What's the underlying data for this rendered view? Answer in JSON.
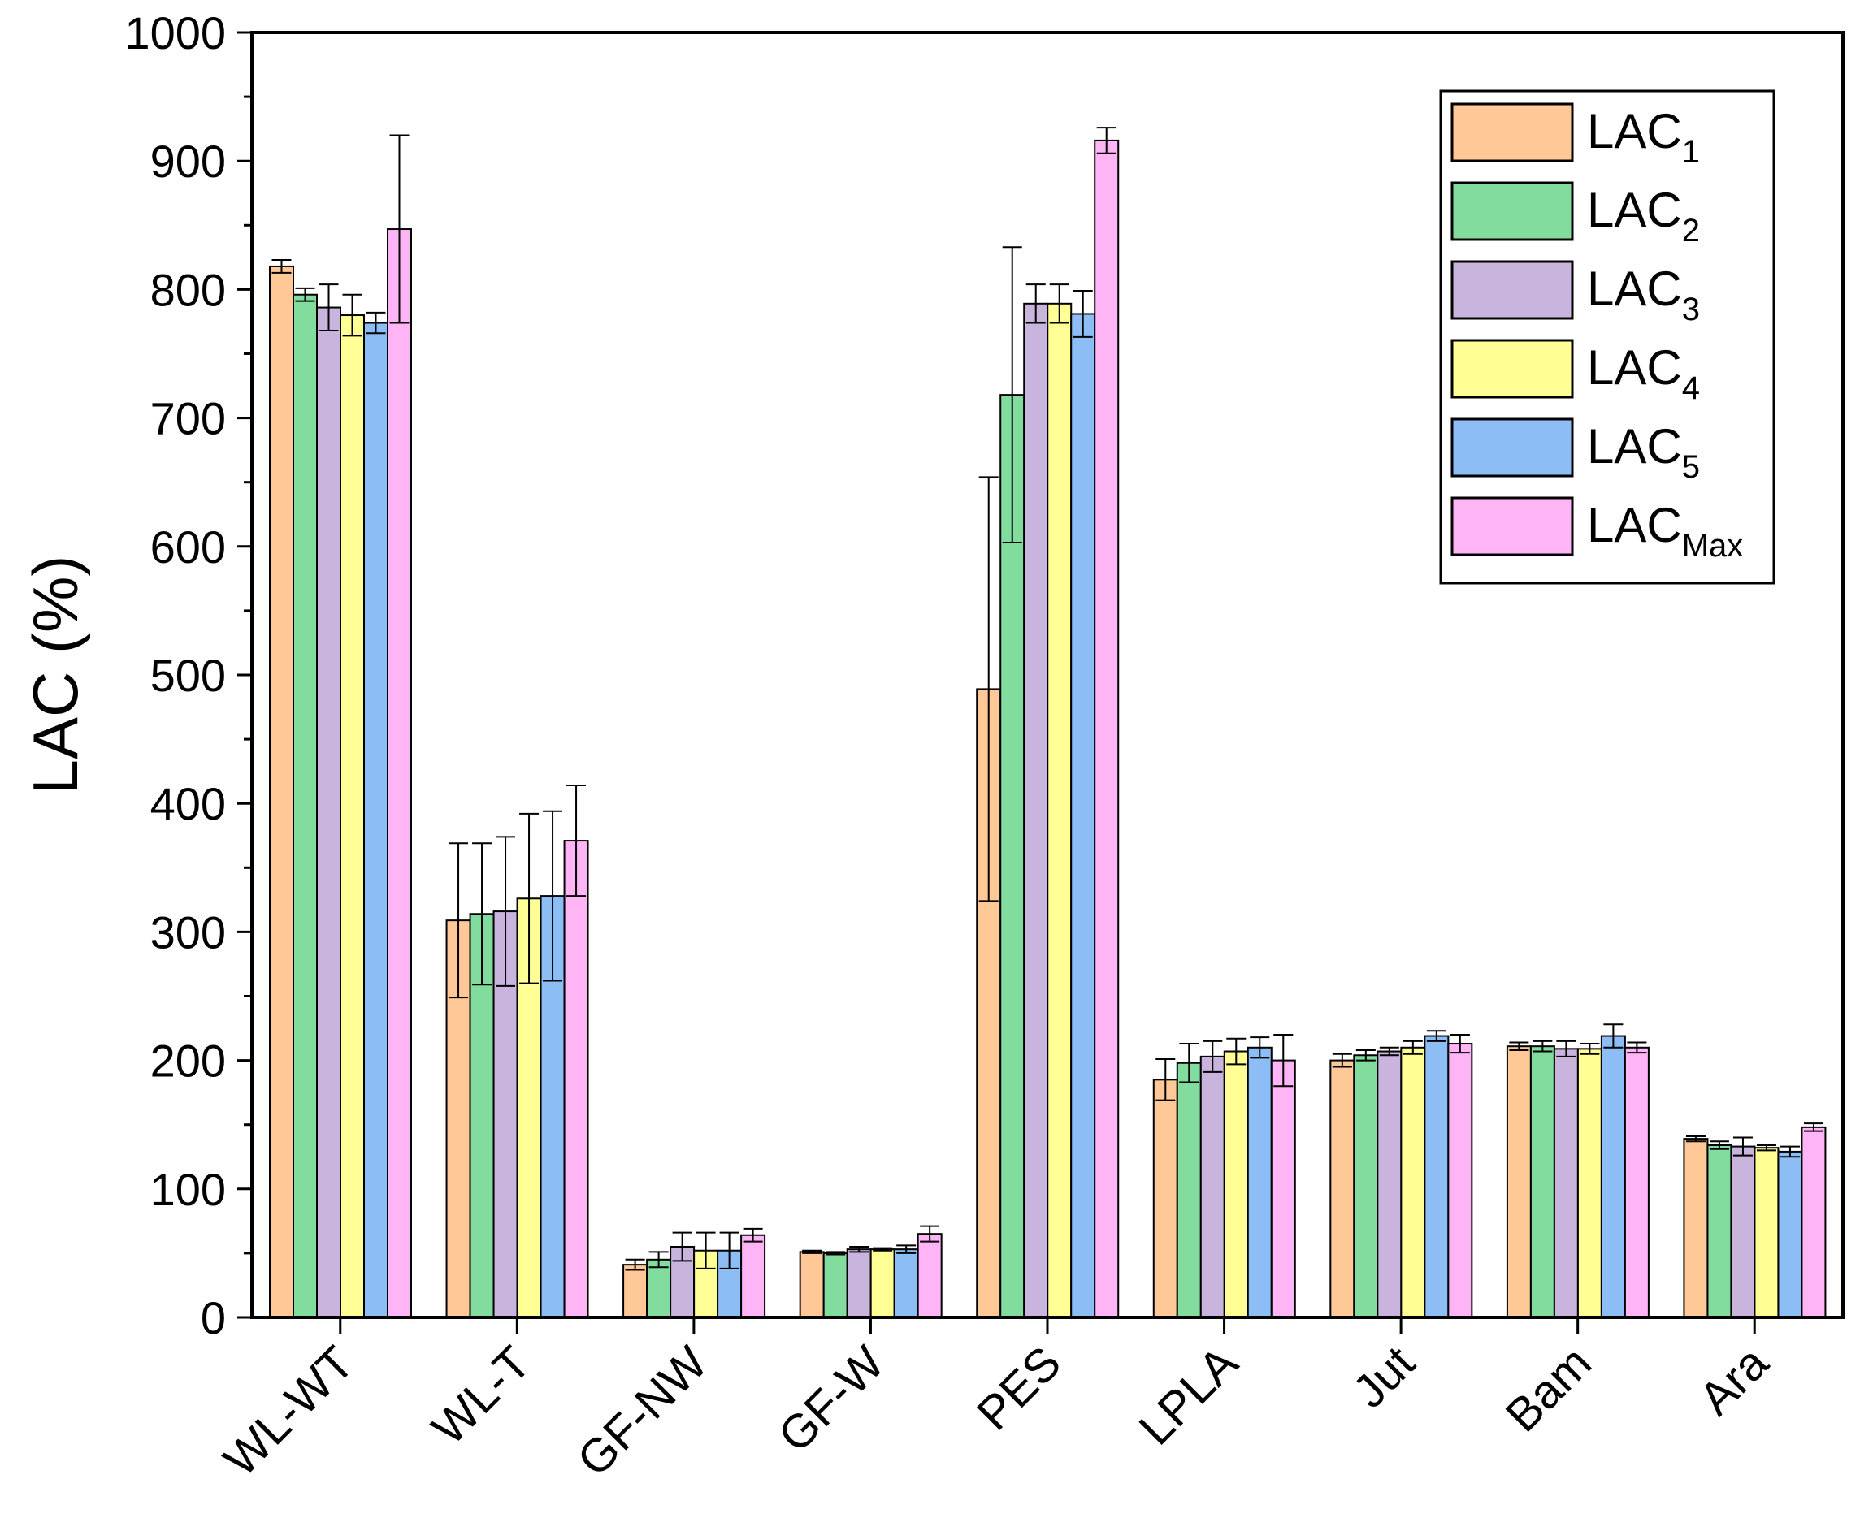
{
  "chart_data": {
    "type": "bar",
    "title": "",
    "xlabel": "",
    "ylabel": "LAC (%)",
    "ylim": [
      0,
      1000
    ],
    "yticks": [
      "0",
      "100",
      "200",
      "300",
      "400",
      "500",
      "600",
      "700",
      "800",
      "900",
      "1000"
    ],
    "categories": [
      "WL-WT",
      "WL-T",
      "GF-NW",
      "GF-W",
      "PES",
      "LPLA",
      "Jut",
      "Bam",
      "Ara"
    ],
    "legend_position": "top-right",
    "series": [
      {
        "name": "LAC1",
        "base": "LAC",
        "sub": "1",
        "color": "#FFC896",
        "values": [
          818,
          309,
          41,
          51,
          489,
          185,
          200,
          211,
          139
        ],
        "errors": [
          5,
          60,
          4,
          1,
          165,
          16,
          5,
          3,
          2
        ]
      },
      {
        "name": "LAC2",
        "base": "LAC",
        "sub": "2",
        "color": "#82DC9E",
        "values": [
          796,
          314,
          45,
          50,
          718,
          198,
          204,
          211,
          134
        ],
        "errors": [
          5,
          55,
          6,
          1,
          115,
          15,
          4,
          4,
          3
        ]
      },
      {
        "name": "LAC3",
        "base": "LAC",
        "sub": "3",
        "color": "#C8B4DC",
        "values": [
          786,
          316,
          55,
          53,
          789,
          203,
          207,
          209,
          133
        ],
        "errors": [
          18,
          58,
          11,
          2,
          15,
          12,
          3,
          6,
          7
        ]
      },
      {
        "name": "LAC4",
        "base": "LAC",
        "sub": "4",
        "color": "#FFFF96",
        "values": [
          780,
          326,
          52,
          53,
          789,
          207,
          210,
          209,
          132
        ],
        "errors": [
          16,
          66,
          14,
          1,
          15,
          10,
          5,
          4,
          2
        ]
      },
      {
        "name": "LAC5",
        "base": "LAC",
        "sub": "5",
        "color": "#8CBEF5",
        "values": [
          774,
          328,
          52,
          53,
          781,
          210,
          219,
          219,
          129
        ],
        "errors": [
          8,
          66,
          14,
          3,
          18,
          8,
          4,
          9,
          4
        ]
      },
      {
        "name": "LACMax",
        "base": "LAC",
        "sub": "Max",
        "color": "#FFB4F5",
        "values": [
          847,
          371,
          64,
          65,
          916,
          200,
          213,
          210,
          148
        ],
        "errors": [
          73,
          43,
          5,
          6,
          10,
          20,
          7,
          4,
          3
        ]
      }
    ]
  }
}
